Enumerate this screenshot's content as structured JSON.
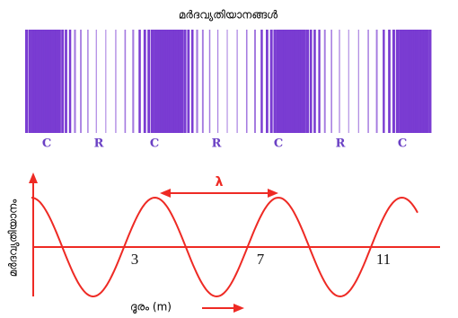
{
  "title": "മർദവ്യതിയാനങ്ങൾ",
  "pattern_labels": [
    "C",
    "R",
    "C",
    "R",
    "C",
    "R",
    "C"
  ],
  "graph": {
    "y_label": "മർദവ്യതിയാനം",
    "x_label": "ദൂരം (m)",
    "wavelength_label": "λ",
    "distance_marks": [
      3,
      7,
      11
    ]
  }
}
